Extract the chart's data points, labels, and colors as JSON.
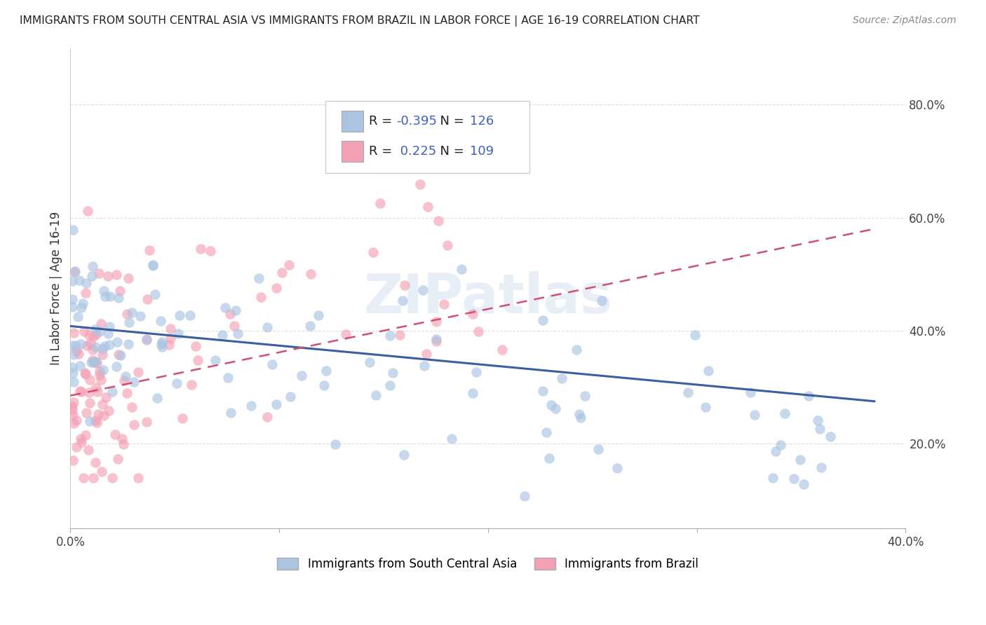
{
  "title": "IMMIGRANTS FROM SOUTH CENTRAL ASIA VS IMMIGRANTS FROM BRAZIL IN LABOR FORCE | AGE 16-19 CORRELATION CHART",
  "source": "Source: ZipAtlas.com",
  "ylabel": "In Labor Force | Age 16-19",
  "xlim": [
    0.0,
    0.4
  ],
  "ylim": [
    0.05,
    0.9
  ],
  "yticks": [
    0.2,
    0.4,
    0.6,
    0.8
  ],
  "ytick_labels": [
    "20.0%",
    "40.0%",
    "60.0%",
    "80.0%"
  ],
  "xticks": [
    0.0,
    0.1,
    0.2,
    0.3,
    0.4
  ],
  "xtick_labels": [
    "0.0%",
    "",
    "",
    "",
    "40.0%"
  ],
  "R_blue": -0.395,
  "N_blue": 126,
  "R_pink": 0.225,
  "N_pink": 109,
  "blue_color": "#aac4e2",
  "pink_color": "#f4a0b5",
  "blue_line_color": "#3a5fa0",
  "pink_line_color": "#d05070",
  "watermark": "ZIPatlas",
  "legend_label_blue": "Immigrants from South Central Asia",
  "legend_label_pink": "Immigrants from Brazil",
  "background_color": "#ffffff",
  "grid_color": "#dddddd",
  "blue_seed": 12,
  "pink_seed": 7
}
